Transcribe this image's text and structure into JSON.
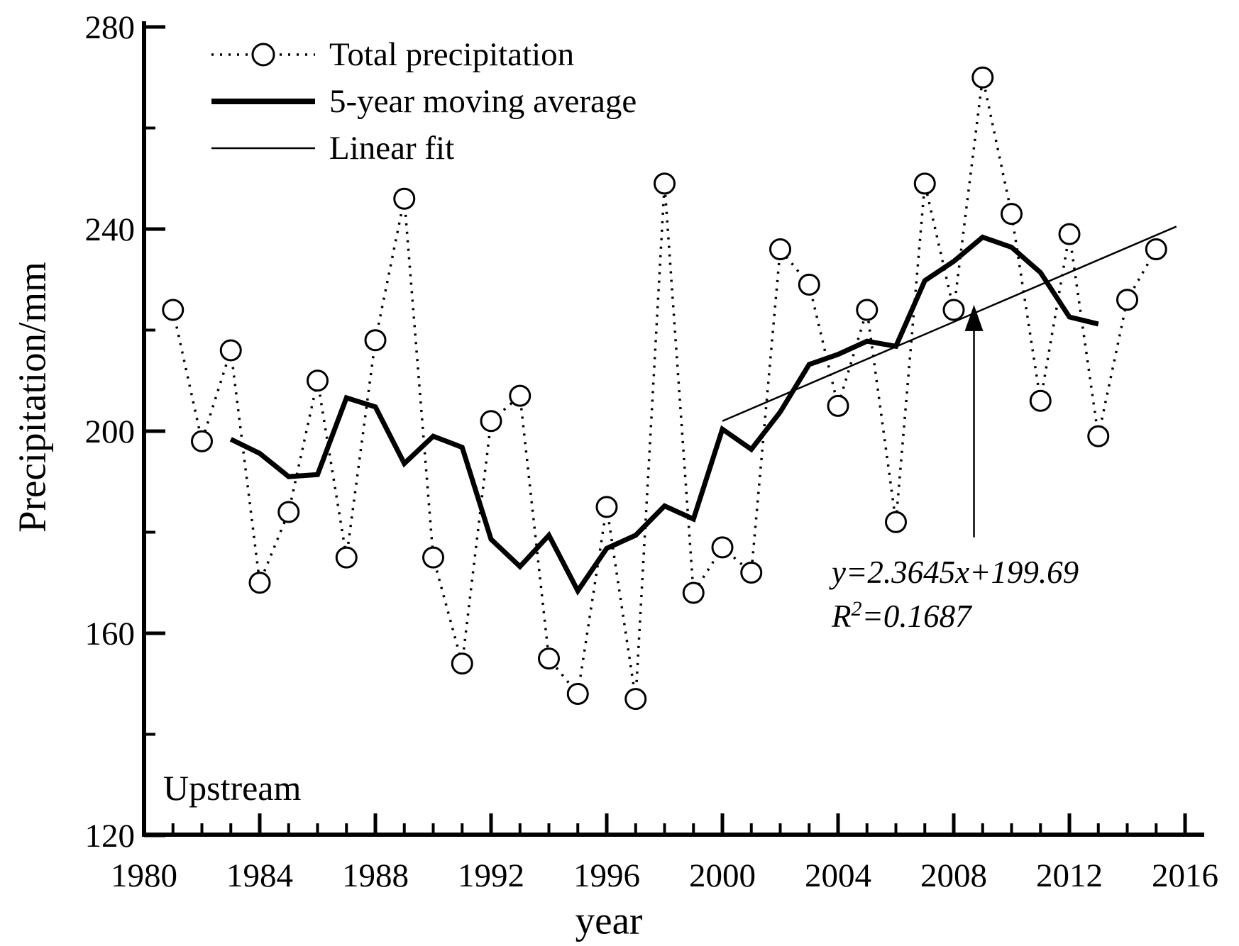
{
  "figure": {
    "upstream_label": "Upstream",
    "legend": {
      "items": [
        {
          "label": "Total precipitation",
          "symbol": "dotted-line-with-open-circle"
        },
        {
          "label": "5-year moving average",
          "symbol": "thick-solid-line"
        },
        {
          "label": "Linear fit",
          "symbol": "thin-solid-line"
        }
      ]
    },
    "annotation": {
      "line1": "y=2.3645x+199.69",
      "r_base": "R",
      "r_sup": "2",
      "r_rest": "=0.1687"
    }
  },
  "chart_data": {
    "type": "line",
    "title": "",
    "xlabel": "year",
    "ylabel": "Precipitation/mm",
    "xlim": [
      1980,
      2016
    ],
    "ylim": [
      120,
      280
    ],
    "x_major_ticks": [
      1980,
      1984,
      1988,
      1992,
      1996,
      2000,
      2004,
      2008,
      2012,
      2016
    ],
    "x_minor_step_years": 1,
    "y_major_ticks": [
      120,
      160,
      200,
      240,
      280
    ],
    "y_minor_ticks": [
      140,
      180,
      220,
      260
    ],
    "grid": false,
    "legend_position": "upper-left",
    "years": [
      1981,
      1982,
      1983,
      1984,
      1985,
      1986,
      1987,
      1988,
      1989,
      1990,
      1991,
      1992,
      1993,
      1994,
      1995,
      1996,
      1997,
      1998,
      1999,
      2000,
      2001,
      2002,
      2003,
      2004,
      2005,
      2006,
      2007,
      2008,
      2009,
      2010,
      2011,
      2012,
      2013,
      2014,
      2015
    ],
    "series": [
      {
        "name": "Total precipitation",
        "style": "dotted-with-open-circles",
        "values": [
          224,
          198,
          216,
          170,
          184,
          210,
          175,
          218,
          246,
          175,
          154,
          202,
          207,
          155,
          148,
          185,
          147,
          249,
          168,
          177,
          172,
          236,
          229,
          205,
          224,
          182,
          249,
          224,
          270,
          243,
          206,
          239,
          199,
          226,
          236
        ]
      },
      {
        "name": "5-year moving average",
        "style": "thick-solid",
        "window": 5,
        "years": [
          1983,
          1984,
          1985,
          1986,
          1987,
          1988,
          1989,
          1990,
          1991,
          1992,
          1993,
          1994,
          1995,
          1996,
          1997,
          1998,
          1999,
          2000,
          2001,
          2002,
          2003,
          2004,
          2005,
          2006,
          2007,
          2008,
          2009,
          2010,
          2011,
          2012,
          2013
        ],
        "values": [
          198.4,
          195.6,
          191.0,
          191.4,
          206.6,
          204.8,
          193.6,
          199.0,
          196.8,
          178.6,
          173.2,
          179.4,
          168.4,
          176.8,
          179.4,
          185.2,
          182.6,
          200.4,
          196.4,
          203.8,
          213.2,
          215.2,
          217.8,
          216.8,
          229.8,
          233.6,
          238.4,
          236.4,
          231.4,
          222.6,
          221.2
        ]
      },
      {
        "name": "Linear fit",
        "style": "thin-solid",
        "equation": "y=2.3645x+199.69",
        "r_squared": 0.1687,
        "segment": {
          "x1": 2000.0,
          "y1": 202.0,
          "x2": 2015.7,
          "y2": 240.5
        }
      }
    ],
    "annotation_arrow": {
      "x": 2008.7,
      "tail_value": 179,
      "tip_value": 225
    }
  }
}
